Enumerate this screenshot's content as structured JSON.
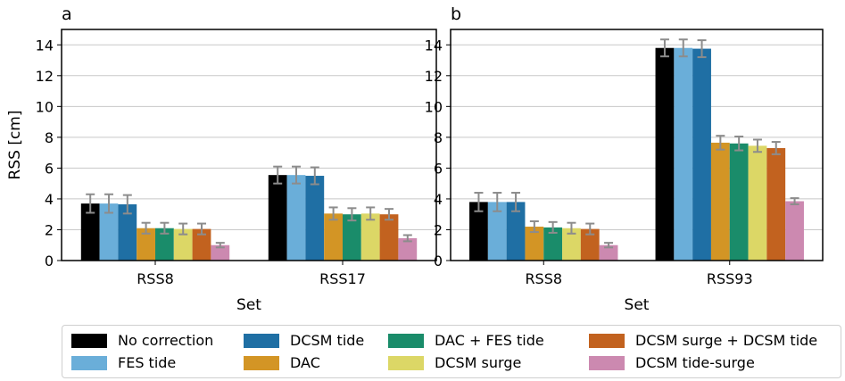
{
  "chart_data": [
    {
      "panel_label": "a",
      "type": "bar",
      "xlabel": "Set",
      "ylabel": "RSS [cm]",
      "ylim": [
        0,
        15
      ],
      "yticks": [
        0,
        2,
        4,
        6,
        8,
        10,
        12,
        14
      ],
      "grid": "horizontal",
      "categories": [
        "RSS8",
        "RSS17"
      ],
      "series": [
        {
          "name": "No correction",
          "values": [
            3.7,
            5.55
          ],
          "errors": [
            0.6,
            0.55
          ]
        },
        {
          "name": "FES tide",
          "values": [
            3.7,
            5.55
          ],
          "errors": [
            0.6,
            0.55
          ]
        },
        {
          "name": "DCSM tide",
          "values": [
            3.65,
            5.5
          ],
          "errors": [
            0.6,
            0.55
          ]
        },
        {
          "name": "DAC",
          "values": [
            2.1,
            3.05
          ],
          "errors": [
            0.35,
            0.4
          ]
        },
        {
          "name": "DAC + FES tide",
          "values": [
            2.1,
            3.0
          ],
          "errors": [
            0.35,
            0.4
          ]
        },
        {
          "name": "DCSM surge",
          "values": [
            2.05,
            3.05
          ],
          "errors": [
            0.35,
            0.4
          ]
        },
        {
          "name": "DCSM surge + DCSM tide",
          "values": [
            2.05,
            3.0
          ],
          "errors": [
            0.35,
            0.35
          ]
        },
        {
          "name": "DCSM tide-surge",
          "values": [
            1.0,
            1.45
          ],
          "errors": [
            0.15,
            0.2
          ]
        }
      ]
    },
    {
      "panel_label": "b",
      "type": "bar",
      "xlabel": "Set",
      "ylabel": "",
      "ylim": [
        0,
        15
      ],
      "yticks": [
        0,
        2,
        4,
        6,
        8,
        10,
        12,
        14
      ],
      "grid": "horizontal",
      "categories": [
        "RSS8",
        "RSS93"
      ],
      "series": [
        {
          "name": "No correction",
          "values": [
            3.8,
            13.8
          ],
          "errors": [
            0.6,
            0.55
          ]
        },
        {
          "name": "FES tide",
          "values": [
            3.8,
            13.8
          ],
          "errors": [
            0.6,
            0.55
          ]
        },
        {
          "name": "DCSM tide",
          "values": [
            3.8,
            13.75
          ],
          "errors": [
            0.6,
            0.55
          ]
        },
        {
          "name": "DAC",
          "values": [
            2.2,
            7.65
          ],
          "errors": [
            0.35,
            0.45
          ]
        },
        {
          "name": "DAC + FES tide",
          "values": [
            2.15,
            7.6
          ],
          "errors": [
            0.35,
            0.45
          ]
        },
        {
          "name": "DCSM surge",
          "values": [
            2.1,
            7.45
          ],
          "errors": [
            0.35,
            0.4
          ]
        },
        {
          "name": "DCSM surge + DCSM tide",
          "values": [
            2.05,
            7.3
          ],
          "errors": [
            0.35,
            0.4
          ]
        },
        {
          "name": "DCSM tide-surge",
          "values": [
            1.0,
            3.85
          ],
          "errors": [
            0.15,
            0.2
          ]
        }
      ]
    }
  ],
  "colors": [
    "#000000",
    "#6aaed9",
    "#1f6fa4",
    "#d39525",
    "#1a8c6a",
    "#dcd766",
    "#c2621f",
    "#cc89b0"
  ],
  "error_bar_color": "#8c8c8c",
  "legend": {
    "placement": "bottom",
    "items": [
      {
        "label": "No correction",
        "color": "#000000"
      },
      {
        "label": "FES tide",
        "color": "#6aaed9"
      },
      {
        "label": "DCSM tide",
        "color": "#1f6fa4"
      },
      {
        "label": "DAC",
        "color": "#d39525"
      },
      {
        "label": "DAC + FES tide",
        "color": "#1a8c6a"
      },
      {
        "label": "DCSM surge",
        "color": "#dcd766"
      },
      {
        "label": "DCSM surge + DCSM tide",
        "color": "#c2621f"
      },
      {
        "label": "DCSM tide-surge",
        "color": "#cc89b0"
      }
    ]
  }
}
